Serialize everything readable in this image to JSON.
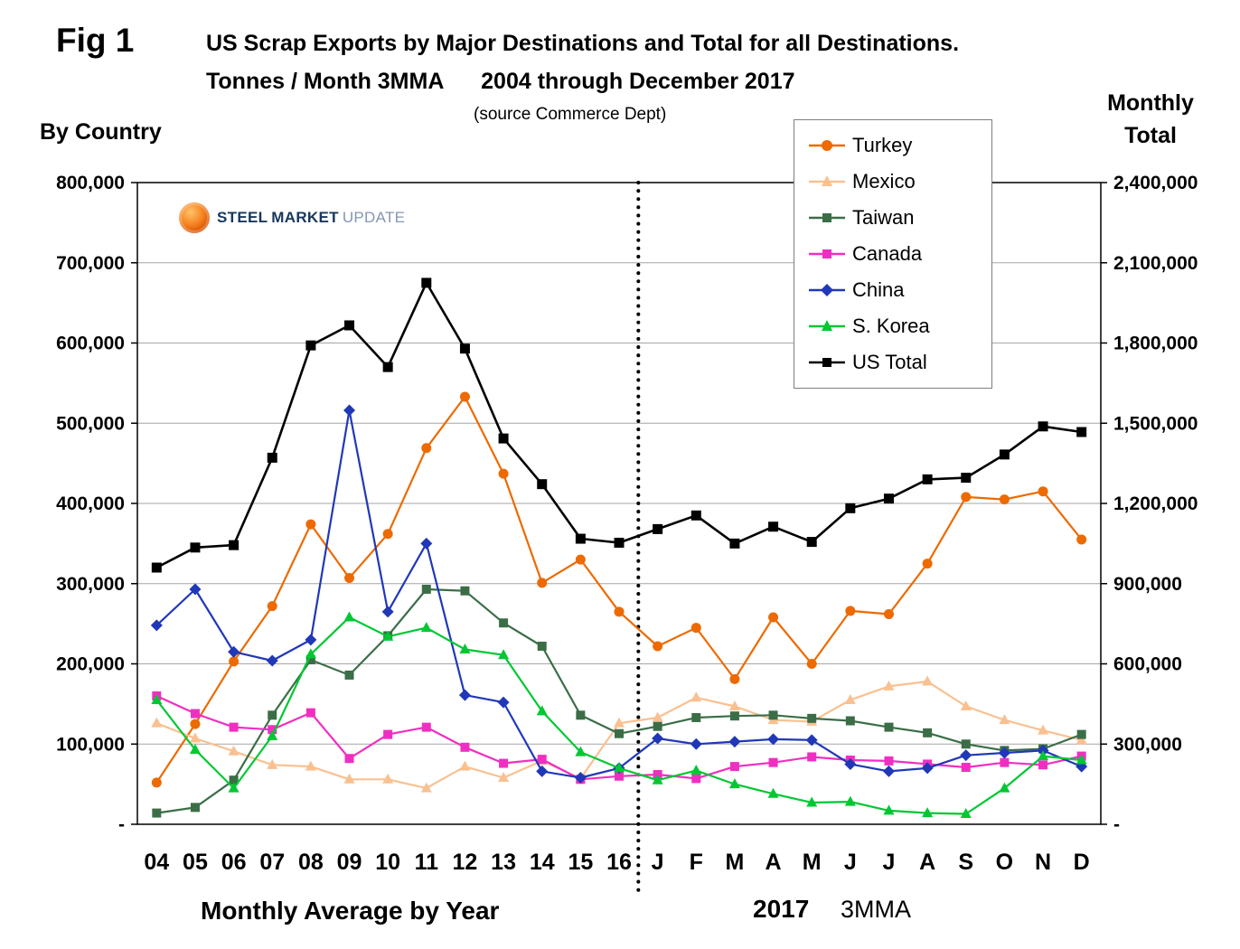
{
  "figure": {
    "fig_label": "Fig 1",
    "title_line1": "US Scrap Exports by Major Destinations and Total for all Destinations.",
    "title_line2": "Tonnes / Month 3MMA      2004 through December 2017",
    "source": "(source Commerce Dept)",
    "left_axis_title": "By Country",
    "right_axis_title_line1": "Monthly",
    "right_axis_title_line2": "Total",
    "bottom_caption_left": "Monthly Average by Year",
    "bottom_caption_year": "2017",
    "bottom_caption_right": "3MMA"
  },
  "logo": {
    "word1": "STEEL",
    "word2": "MARKET",
    "word3": "UPDATE"
  },
  "chart_data": {
    "type": "line",
    "title": "US Scrap Exports by Major Destinations and Total for all Destinations. Tonnes / Month 3MMA, 2004 through December 2017",
    "categories": [
      "04",
      "05",
      "06",
      "07",
      "08",
      "09",
      "10",
      "11",
      "12",
      "13",
      "14",
      "15",
      "16",
      "J",
      "F",
      "M",
      "A",
      "M",
      "J",
      "J",
      "A",
      "S",
      "O",
      "N",
      "D"
    ],
    "categories_note": "2004-2016 are monthly averages by year; J-D are Jan-Dec 2017 3MMA",
    "separator_after_index": 12,
    "left_axis": {
      "title": "By Country",
      "min": 0,
      "max": 800000,
      "tick_step": 100000,
      "zero_label": "-"
    },
    "right_axis": {
      "title": "Monthly Total",
      "min": 0,
      "max": 2400000,
      "tick_step": 300000,
      "zero_label": "-"
    },
    "grid": "horizontal",
    "legend_position": "top-right-inside",
    "series": [
      {
        "name": "Turkey",
        "color": "#ed6a00",
        "marker": "circle",
        "axis": "left",
        "values": [
          52000,
          125000,
          203000,
          272000,
          374000,
          307000,
          362000,
          469000,
          533000,
          437000,
          301000,
          330000,
          265000,
          222000,
          245000,
          181000,
          258000,
          200000,
          266000,
          262000,
          325000,
          408000,
          405000,
          415000,
          355000
        ]
      },
      {
        "name": "Mexico",
        "color": "#fac090",
        "marker": "triangle",
        "axis": "left",
        "values": [
          126000,
          107000,
          91000,
          74000,
          72000,
          56000,
          56000,
          45000,
          72000,
          58000,
          79000,
          57000,
          126000,
          133000,
          158000,
          147000,
          130000,
          128000,
          155000,
          172000,
          178000,
          147000,
          130000,
          117000,
          105000
        ]
      },
      {
        "name": "Taiwan",
        "color": "#3b6e47",
        "marker": "square",
        "axis": "left",
        "values": [
          14000,
          21000,
          55000,
          136000,
          205000,
          186000,
          235000,
          293000,
          291000,
          251000,
          222000,
          136000,
          113000,
          122000,
          133000,
          135000,
          136000,
          132000,
          129000,
          121000,
          114000,
          100000,
          92000,
          94000,
          112000
        ]
      },
      {
        "name": "Canada",
        "color": "#f02fc2",
        "marker": "square",
        "axis": "left",
        "values": [
          160000,
          138000,
          121000,
          118000,
          139000,
          82000,
          112000,
          121000,
          96000,
          76000,
          81000,
          56000,
          60000,
          62000,
          57000,
          72000,
          77000,
          84000,
          80000,
          79000,
          75000,
          71000,
          77000,
          74000,
          85000
        ]
      },
      {
        "name": "China",
        "color": "#2038b8",
        "marker": "diamond",
        "axis": "left",
        "values": [
          248000,
          293000,
          215000,
          204000,
          230000,
          516000,
          265000,
          350000,
          161000,
          152000,
          66000,
          58000,
          70000,
          107000,
          100000,
          103000,
          106000,
          105000,
          75000,
          66000,
          70000,
          86000,
          89000,
          92000,
          72000
        ]
      },
      {
        "name": "S. Korea",
        "color": "#00c832",
        "marker": "triangle",
        "axis": "left",
        "values": [
          155000,
          93000,
          45000,
          110000,
          212000,
          258000,
          234000,
          245000,
          218000,
          211000,
          141000,
          90000,
          70000,
          55000,
          67000,
          50000,
          38000,
          27000,
          28000,
          17000,
          14000,
          13000,
          45000,
          85000,
          80000
        ]
      },
      {
        "name": "US Total",
        "color": "#000000",
        "marker": "square",
        "axis": "right",
        "values": [
          960000,
          1035000,
          1044000,
          1371000,
          1791000,
          1866000,
          1710000,
          2025000,
          1779000,
          1443000,
          1272000,
          1068000,
          1053000,
          1104000,
          1155000,
          1050000,
          1113000,
          1056000,
          1182000,
          1218000,
          1290000,
          1296000,
          1383000,
          1488000,
          1467000
        ]
      }
    ]
  }
}
